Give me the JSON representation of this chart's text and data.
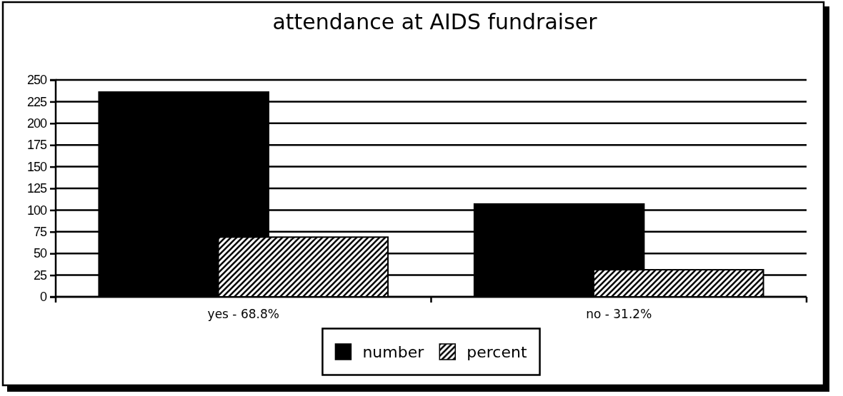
{
  "chart_data": {
    "type": "bar",
    "title": "attendance at AIDS fundraiser",
    "categories": [
      "yes - 68.8%",
      "no - 31.2%"
    ],
    "series": [
      {
        "name": "number",
        "color": "#000000",
        "values": [
          236,
          107
        ]
      },
      {
        "name": "percent",
        "color": "#000000",
        "values": [
          68.8,
          31.2
        ]
      }
    ],
    "ylim": [
      0,
      250
    ],
    "yticks": [
      0,
      25,
      50,
      75,
      100,
      125,
      150,
      175,
      200,
      225,
      250
    ],
    "grid": "y",
    "legend": "bottom"
  }
}
